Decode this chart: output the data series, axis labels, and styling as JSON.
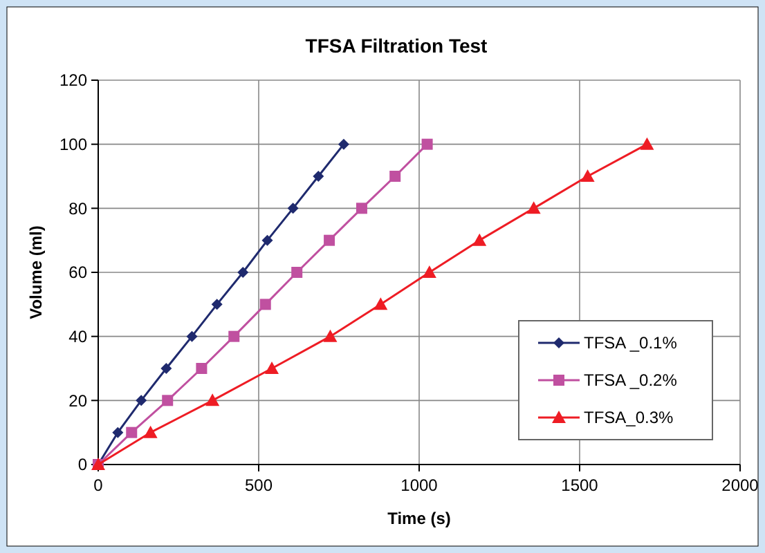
{
  "chart_data": {
    "type": "line",
    "title": "TFSA Filtration Test",
    "xlabel": "Time (s)",
    "ylabel": "Volume (ml)",
    "xlim": [
      0,
      2000
    ],
    "xticks": [
      0,
      500,
      1000,
      1500,
      2000
    ],
    "ylim": [
      0,
      120
    ],
    "yticks": [
      0,
      20,
      40,
      60,
      80,
      100,
      120
    ],
    "grid": true,
    "legend": "bottom right",
    "series": [
      {
        "name": "TFSA _0.1%",
        "color": "#1f2a6e",
        "marker": "diamond",
        "x": [
          0,
          61,
          134,
          212,
          292,
          370,
          451,
          527,
          607,
          686,
          765
        ],
        "values": [
          0,
          10,
          20,
          30,
          40,
          50,
          60,
          70,
          80,
          90,
          100
        ]
      },
      {
        "name": "TFSA _0.2%",
        "color": "#c050a0",
        "marker": "square",
        "x": [
          0,
          104,
          216,
          322,
          423,
          521,
          619,
          720,
          821,
          925,
          1025
        ],
        "values": [
          0,
          10,
          20,
          30,
          40,
          50,
          60,
          70,
          80,
          90,
          100
        ]
      },
      {
        "name": "TFSA_0.3%",
        "color": "#ee1c24",
        "marker": "triangle",
        "x": [
          0,
          163,
          356,
          541,
          723,
          880,
          1032,
          1188,
          1357,
          1525,
          1710
        ],
        "values": [
          0,
          10,
          20,
          30,
          40,
          50,
          60,
          70,
          80,
          90,
          100
        ]
      }
    ]
  }
}
